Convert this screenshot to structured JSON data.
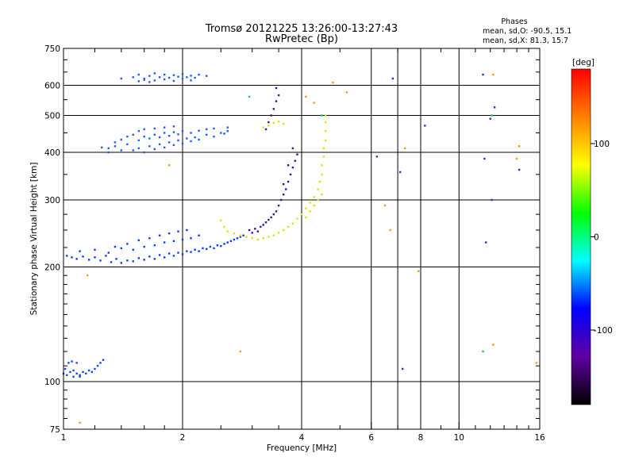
{
  "chart_data": {
    "type": "scatter",
    "title": "Tromsø 20121225 13:26:00-13:27:43",
    "subtitle": "RwPretec (Bp)",
    "stats": {
      "header": "Phases",
      "line_o": "mean, sd,O: -90.5, 15.1",
      "line_x": "mean, sd,X:  81.3, 15.7"
    },
    "xlabel": "Frequency [MHz]",
    "ylabel": "Stationary phase Virtual Height [km]",
    "xscale": "log",
    "yscale": "log",
    "xlim": [
      1,
      16
    ],
    "ylim": [
      75,
      750
    ],
    "xticks": [
      1,
      2,
      4,
      6,
      8,
      10,
      16
    ],
    "xtick_labels": [
      "1",
      "2",
      "4",
      "6",
      "8",
      "10",
      "16"
    ],
    "xgrid": [
      2,
      4,
      6,
      7,
      8,
      10
    ],
    "yticks": [
      75,
      100,
      200,
      300,
      400,
      500,
      600,
      750
    ],
    "ytick_labels": [
      "75",
      "100",
      "200",
      "300",
      "400",
      "500",
      "600",
      "750"
    ],
    "ygrid": [
      100,
      200,
      300,
      400,
      500,
      600
    ],
    "grid": true,
    "colorbar": {
      "label": "[deg]",
      "range": [
        -180,
        180
      ],
      "ticks": [
        100,
        0,
        -100
      ],
      "tick_labels": [
        "100",
        "0",
        "-100"
      ],
      "colors": [
        "#ff0000",
        "#ff8000",
        "#ffff00",
        "#00ff00",
        "#00ffff",
        "#0000ff",
        "#6000a0",
        "#000000"
      ]
    },
    "series": [
      {
        "color": "#0a3cff",
        "points": [
          [
            1.02,
            214
          ],
          [
            1.05,
            212
          ],
          [
            1.08,
            210
          ],
          [
            1.12,
            213
          ],
          [
            1.16,
            209
          ],
          [
            1.2,
            212
          ],
          [
            1.24,
            208
          ],
          [
            1.28,
            214
          ],
          [
            1.32,
            206
          ],
          [
            1.36,
            210
          ],
          [
            1.4,
            205
          ],
          [
            1.45,
            208
          ],
          [
            1.5,
            207
          ],
          [
            1.55,
            211
          ],
          [
            1.6,
            209
          ],
          [
            1.65,
            213
          ],
          [
            1.7,
            210
          ],
          [
            1.75,
            215
          ],
          [
            1.8,
            212
          ],
          [
            1.85,
            217
          ],
          [
            1.9,
            214
          ],
          [
            1.95,
            218
          ],
          [
            2.0,
            216
          ],
          [
            2.05,
            220
          ],
          [
            2.1,
            219
          ],
          [
            2.15,
            222
          ],
          [
            2.2,
            220
          ],
          [
            2.25,
            224
          ],
          [
            2.3,
            223
          ],
          [
            2.35,
            226
          ],
          [
            2.4,
            224
          ],
          [
            2.45,
            228
          ],
          [
            2.5,
            227
          ],
          [
            2.55,
            230
          ],
          [
            2.6,
            232
          ],
          [
            2.65,
            234
          ],
          [
            2.7,
            236
          ],
          [
            2.75,
            238
          ],
          [
            2.8,
            240
          ],
          [
            2.85,
            242
          ],
          [
            1.3,
            218
          ],
          [
            1.4,
            224
          ],
          [
            1.5,
            222
          ],
          [
            1.6,
            226
          ],
          [
            1.7,
            228
          ],
          [
            1.8,
            232
          ],
          [
            1.9,
            234
          ],
          [
            2.0,
            236
          ],
          [
            2.1,
            238
          ],
          [
            2.2,
            242
          ],
          [
            1.45,
            230
          ],
          [
            1.55,
            235
          ],
          [
            1.65,
            238
          ],
          [
            1.75,
            242
          ],
          [
            1.85,
            245
          ],
          [
            1.95,
            248
          ],
          [
            2.05,
            250
          ],
          [
            1.2,
            222
          ],
          [
            1.1,
            220
          ],
          [
            1.35,
            226
          ]
        ]
      },
      {
        "color": "#1e5aff",
        "points": [
          [
            1.5,
            405
          ],
          [
            1.55,
            410
          ],
          [
            1.6,
            400
          ],
          [
            1.65,
            415
          ],
          [
            1.7,
            408
          ],
          [
            1.75,
            420
          ],
          [
            1.8,
            412
          ],
          [
            1.85,
            425
          ],
          [
            1.9,
            418
          ],
          [
            1.95,
            430
          ],
          [
            2.0,
            422
          ],
          [
            2.05,
            435
          ],
          [
            2.1,
            428
          ],
          [
            2.15,
            438
          ],
          [
            2.2,
            432
          ],
          [
            2.3,
            445
          ],
          [
            2.4,
            440
          ],
          [
            2.5,
            450
          ],
          [
            2.55,
            448
          ],
          [
            2.6,
            455
          ],
          [
            1.55,
            430
          ],
          [
            1.6,
            440
          ],
          [
            1.65,
            435
          ],
          [
            1.7,
            445
          ],
          [
            1.75,
            438
          ],
          [
            1.8,
            450
          ],
          [
            1.85,
            442
          ],
          [
            1.9,
            452
          ],
          [
            1.95,
            446
          ],
          [
            2.0,
            455
          ],
          [
            2.1,
            450
          ],
          [
            2.2,
            456
          ],
          [
            2.3,
            460
          ],
          [
            2.4,
            462
          ],
          [
            1.5,
            445
          ],
          [
            1.55,
            455
          ],
          [
            1.6,
            460
          ],
          [
            1.7,
            462
          ],
          [
            1.8,
            465
          ],
          [
            1.9,
            468
          ],
          [
            1.3,
            410
          ],
          [
            1.35,
            415
          ],
          [
            1.4,
            405
          ],
          [
            1.45,
            420
          ],
          [
            1.25,
            412
          ],
          [
            1.35,
            425
          ],
          [
            1.3,
            400
          ],
          [
            1.45,
            440
          ],
          [
            1.4,
            432
          ],
          [
            2.6,
            465
          ]
        ]
      },
      {
        "color": "#1e5aff",
        "points": [
          [
            1.5,
            630
          ],
          [
            1.55,
            640
          ],
          [
            1.6,
            625
          ],
          [
            1.65,
            635
          ],
          [
            1.7,
            645
          ],
          [
            1.75,
            630
          ],
          [
            1.8,
            640
          ],
          [
            1.85,
            628
          ],
          [
            1.9,
            638
          ],
          [
            1.95,
            632
          ],
          [
            2.0,
            642
          ],
          [
            2.05,
            630
          ],
          [
            2.1,
            636
          ],
          [
            2.15,
            628
          ],
          [
            2.2,
            640
          ],
          [
            1.55,
            615
          ],
          [
            1.6,
            620
          ],
          [
            1.65,
            612
          ],
          [
            1.7,
            618
          ],
          [
            1.8,
            622
          ],
          [
            1.9,
            616
          ],
          [
            2.0,
            624
          ],
          [
            2.1,
            618
          ],
          [
            1.4,
            625
          ],
          [
            2.3,
            635
          ]
        ]
      },
      {
        "color": "#0a46ff",
        "points": [
          [
            1.0,
            105
          ],
          [
            1.02,
            104
          ],
          [
            1.04,
            106
          ],
          [
            1.06,
            103
          ],
          [
            1.08,
            105
          ],
          [
            1.1,
            104
          ],
          [
            1.12,
            106
          ],
          [
            1.14,
            105
          ],
          [
            1.16,
            107
          ],
          [
            1.18,
            106
          ],
          [
            1.2,
            108
          ],
          [
            1.22,
            110
          ],
          [
            1.24,
            112
          ],
          [
            1.26,
            114
          ],
          [
            1.03,
            112
          ],
          [
            1.05,
            113
          ],
          [
            1.08,
            112
          ],
          [
            1.01,
            108
          ],
          [
            1.06,
            107
          ],
          [
            1.1,
            103
          ]
        ]
      },
      {
        "color": "#3a10a0",
        "points": [
          [
            2.95,
            250
          ],
          [
            3.0,
            246
          ],
          [
            3.05,
            252
          ],
          [
            3.1,
            248
          ],
          [
            3.15,
            255
          ],
          [
            3.2,
            258
          ],
          [
            3.25,
            262
          ],
          [
            3.3,
            266
          ],
          [
            3.35,
            270
          ],
          [
            3.4,
            275
          ],
          [
            3.45,
            280
          ],
          [
            3.5,
            290
          ],
          [
            3.55,
            300
          ],
          [
            3.6,
            310
          ],
          [
            3.65,
            320
          ],
          [
            3.7,
            335
          ],
          [
            3.75,
            350
          ],
          [
            3.8,
            365
          ],
          [
            3.85,
            380
          ],
          [
            3.9,
            395
          ],
          [
            3.3,
            480
          ],
          [
            3.35,
            500
          ],
          [
            3.4,
            520
          ],
          [
            3.45,
            545
          ],
          [
            3.5,
            565
          ],
          [
            3.45,
            590
          ],
          [
            3.25,
            460
          ],
          [
            3.6,
            330
          ],
          [
            3.7,
            370
          ],
          [
            3.8,
            410
          ]
        ]
      },
      {
        "color": "#d8e600",
        "points": [
          [
            2.5,
            265
          ],
          [
            2.55,
            255
          ],
          [
            2.6,
            248
          ],
          [
            2.7,
            245
          ],
          [
            2.8,
            242
          ],
          [
            2.9,
            240
          ],
          [
            3.0,
            238
          ],
          [
            3.1,
            236
          ],
          [
            3.2,
            238
          ],
          [
            3.3,
            240
          ],
          [
            3.4,
            242
          ],
          [
            3.5,
            246
          ],
          [
            3.6,
            250
          ],
          [
            3.7,
            255
          ],
          [
            3.8,
            260
          ],
          [
            3.9,
            268
          ],
          [
            4.0,
            275
          ],
          [
            4.1,
            285
          ],
          [
            4.2,
            295
          ],
          [
            4.3,
            305
          ],
          [
            4.4,
            320
          ],
          [
            4.45,
            335
          ],
          [
            4.5,
            350
          ],
          [
            4.5,
            370
          ],
          [
            4.55,
            390
          ],
          [
            4.55,
            410
          ],
          [
            4.6,
            430
          ],
          [
            4.6,
            455
          ],
          [
            4.6,
            480
          ],
          [
            4.6,
            500
          ],
          [
            3.3,
            470
          ],
          [
            3.4,
            478
          ],
          [
            3.5,
            482
          ],
          [
            3.6,
            475
          ],
          [
            3.2,
            465
          ],
          [
            4.1,
            270
          ],
          [
            4.2,
            280
          ],
          [
            4.3,
            290
          ],
          [
            4.4,
            300
          ],
          [
            4.5,
            310
          ]
        ]
      },
      {
        "color": "#ff9900",
        "points": [
          [
            1.1,
            78
          ],
          [
            1.15,
            190
          ],
          [
            1.85,
            370
          ],
          [
            2.8,
            120
          ],
          [
            4.1,
            560
          ],
          [
            4.3,
            540
          ],
          [
            4.8,
            610
          ],
          [
            5.2,
            575
          ],
          [
            6.5,
            290
          ],
          [
            6.7,
            250
          ],
          [
            7.3,
            410
          ],
          [
            7.9,
            195
          ],
          [
            12.2,
            640
          ],
          [
            12.2,
            125
          ],
          [
            14.0,
            385
          ],
          [
            15.7,
            112
          ],
          [
            14.2,
            415
          ]
        ]
      },
      {
        "color": "#2a30c8",
        "points": [
          [
            6.2,
            390
          ],
          [
            6.8,
            625
          ],
          [
            7.1,
            355
          ],
          [
            7.2,
            108
          ],
          [
            8.2,
            470
          ],
          [
            11.5,
            640
          ],
          [
            11.6,
            385
          ],
          [
            11.7,
            232
          ],
          [
            12.1,
            300
          ],
          [
            12.3,
            525
          ],
          [
            14.2,
            360
          ],
          [
            12.0,
            490
          ]
        ]
      },
      {
        "color": "#00d070",
        "points": [
          [
            11.5,
            120
          ],
          [
            12.1,
            500
          ],
          [
            4.5,
            500
          ],
          [
            2.95,
            560
          ]
        ]
      }
    ]
  }
}
